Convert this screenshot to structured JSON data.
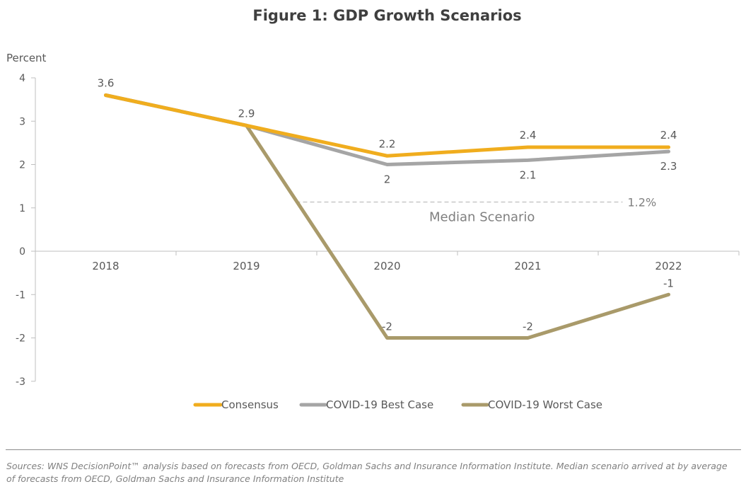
{
  "chart_data": {
    "type": "line",
    "title": "Figure 1: GDP Growth Scenarios",
    "ylabel": "Percent",
    "xlabel": "",
    "categories": [
      "2018",
      "2019",
      "2020",
      "2021",
      "2022"
    ],
    "ylim": [
      -3,
      4
    ],
    "yticks": [
      "4",
      "3",
      "2",
      "1",
      "0",
      "-1",
      "-2",
      "-3"
    ],
    "grid": false,
    "legend_position": "bottom",
    "series": [
      {
        "name": "Consensus",
        "color": "#F0AD1E",
        "values": [
          3.6,
          2.9,
          2.2,
          2.4,
          2.4
        ],
        "labels": [
          "3.6",
          "2.9",
          "2.2",
          "2.4",
          "2.4"
        ]
      },
      {
        "name": "COVID-19 Best Case",
        "color": "#A5A5A5",
        "values": [
          3.6,
          2.9,
          2.0,
          2.1,
          2.3
        ],
        "labels": [
          "",
          "",
          "2",
          "2.1",
          "2.3"
        ]
      },
      {
        "name": "COVID-19 Worst Case",
        "color": "#A99A6A",
        "values": [
          3.6,
          2.9,
          -2,
          -2,
          -1
        ],
        "labels": [
          "",
          "",
          "-2",
          "-2",
          "-1"
        ]
      }
    ],
    "annotations": {
      "median_value": 1.2,
      "median_value_label": "1.2%",
      "median_label": "Median Scenario"
    }
  },
  "footer": {
    "source": "Sources: WNS DecisionPoint™ analysis based on forecasts from OECD, Goldman Sachs and Insurance Information Institute. Median scenario arrived at by average of forecasts from OECD, Goldman Sachs and Insurance Information Institute"
  }
}
